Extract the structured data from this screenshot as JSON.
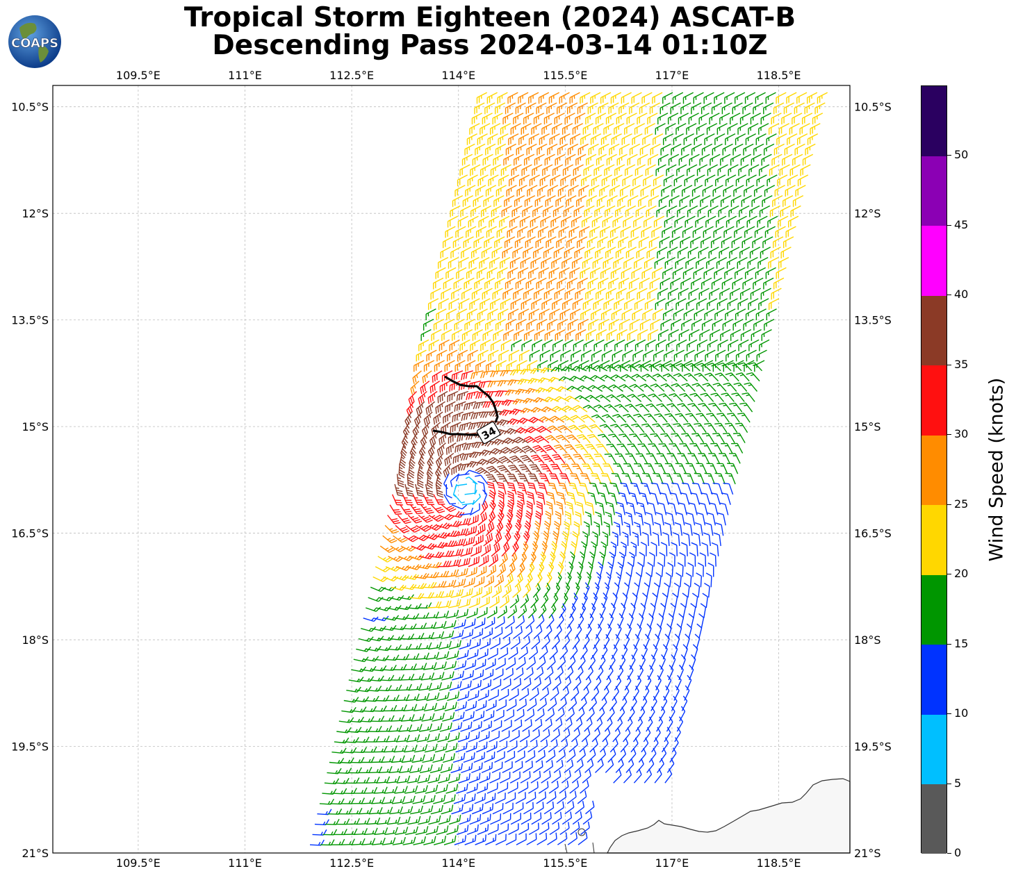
{
  "title": {
    "line1": "Tropical Storm Eighteen (2024) ASCAT-B",
    "line2": "Descending Pass 2024-03-14 01:10Z"
  },
  "logo": {
    "text": "COAPS",
    "icon": "globe-icon"
  },
  "map": {
    "lon_range": [
      108.3,
      119.5
    ],
    "lat_range": [
      -21.0,
      -10.2
    ],
    "x_ticks": [
      "109.5°E",
      "111°E",
      "112.5°E",
      "114°E",
      "115.5°E",
      "117°E",
      "118.5°E"
    ],
    "y_ticks": [
      "10.5°S",
      "12°S",
      "13.5°S",
      "15°S",
      "16.5°S",
      "18°S",
      "19.5°S",
      "21°S"
    ],
    "grid": "dashed",
    "contour_label": "34",
    "storm_center": {
      "lon": 114.1,
      "lat": -15.9
    }
  },
  "colorbar": {
    "title": "Wind Speed (knots)",
    "ticks": [
      "0",
      "5",
      "10",
      "15",
      "20",
      "25",
      "30",
      "35",
      "40",
      "45",
      "50"
    ],
    "colors": [
      "#595959",
      "#00bfff",
      "#0033ff",
      "#009600",
      "#ffd700",
      "#ff8c00",
      "#ff1010",
      "#8b3a26",
      "#ff00ff",
      "#8b00b4",
      "#2a0060"
    ]
  }
}
